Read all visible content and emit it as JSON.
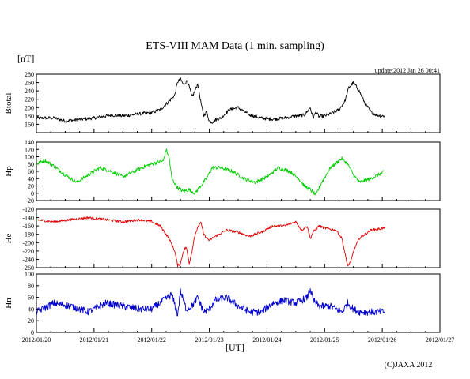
{
  "header": {
    "title": "ETS-VIII MAM Data (1 min. sampling)",
    "unit_label": "[nT]",
    "update_text": "update:2012 Jan 26 00:41"
  },
  "footer": {
    "x_axis_label": "[UT]",
    "copyright": "(C)JAXA 2012"
  },
  "chart_data": {
    "type": "line",
    "x_ticks": [
      "2012/01/20",
      "2012/01/21",
      "2012/01/22",
      "2012/01/23",
      "2012/01/24",
      "2012/01/25",
      "2012/01/26",
      "2012/01/27"
    ],
    "x_range_days": [
      0,
      7
    ],
    "panels": [
      {
        "ylabel": "Btotal",
        "color": "#000000",
        "ylim": [
          140,
          280
        ],
        "yticks": [
          "160",
          "180",
          "200",
          "220",
          "240",
          "260",
          "280"
        ],
        "tick_values": [
          160,
          180,
          200,
          220,
          240,
          260,
          280
        ],
        "series": {
          "x": [
            0.0,
            0.3,
            0.5,
            0.8,
            1.0,
            1.3,
            1.5,
            1.8,
            2.0,
            2.15,
            2.3,
            2.4,
            2.45,
            2.5,
            2.55,
            2.62,
            2.7,
            2.75,
            2.8,
            2.85,
            2.9,
            2.95,
            3.0,
            3.05,
            3.1,
            3.2,
            3.35,
            3.5,
            3.7,
            3.9,
            4.1,
            4.3,
            4.5,
            4.65,
            4.75,
            4.8,
            4.85,
            4.9,
            5.0,
            5.1,
            5.25,
            5.35,
            5.42,
            5.5,
            5.6,
            5.7,
            5.8,
            5.9,
            6.0,
            6.05
          ],
          "values": [
            175,
            175,
            168,
            172,
            175,
            182,
            180,
            185,
            188,
            195,
            215,
            230,
            262,
            268,
            255,
            265,
            225,
            240,
            258,
            215,
            180,
            190,
            168,
            165,
            170,
            175,
            195,
            200,
            182,
            175,
            172,
            175,
            180,
            182,
            200,
            175,
            190,
            178,
            180,
            185,
            195,
            215,
            248,
            260,
            240,
            210,
            190,
            182,
            180,
            180
          ],
          "noise": 4
        }
      },
      {
        "ylabel": "Hp",
        "color": "#00cc00",
        "ylim": [
          -20,
          140
        ],
        "yticks": [
          "-20",
          "0",
          "20",
          "40",
          "60",
          "80",
          "100",
          "120",
          "140"
        ],
        "tick_values": [
          -20,
          0,
          20,
          40,
          60,
          80,
          100,
          120,
          140
        ],
        "series": {
          "x": [
            0.0,
            0.15,
            0.3,
            0.5,
            0.7,
            0.9,
            1.1,
            1.3,
            1.5,
            1.7,
            1.9,
            2.1,
            2.2,
            2.25,
            2.3,
            2.35,
            2.45,
            2.55,
            2.65,
            2.75,
            2.85,
            2.95,
            3.05,
            3.2,
            3.4,
            3.6,
            3.8,
            4.0,
            4.2,
            4.4,
            4.55,
            4.65,
            4.75,
            4.85,
            4.95,
            5.1,
            5.3,
            5.4,
            5.5,
            5.6,
            5.8,
            6.05
          ],
          "values": [
            80,
            90,
            75,
            50,
            30,
            50,
            70,
            60,
            45,
            60,
            75,
            85,
            88,
            120,
            100,
            40,
            15,
            5,
            10,
            0,
            20,
            40,
            70,
            70,
            60,
            40,
            30,
            45,
            70,
            60,
            40,
            20,
            10,
            -5,
            30,
            70,
            95,
            80,
            50,
            30,
            40,
            60
          ],
          "noise": 5
        }
      },
      {
        "ylabel": "He",
        "color": "#dd0000",
        "ylim": [
          -260,
          -120
        ],
        "yticks": [
          "-260",
          "-240",
          "-220",
          "-200",
          "-180",
          "-160",
          "-140",
          "-120"
        ],
        "tick_values": [
          -260,
          -240,
          -220,
          -200,
          -180,
          -160,
          -140,
          -120
        ],
        "series": {
          "x": [
            0.0,
            0.3,
            0.6,
            0.9,
            1.2,
            1.5,
            1.8,
            2.0,
            2.15,
            2.3,
            2.4,
            2.45,
            2.5,
            2.55,
            2.6,
            2.65,
            2.7,
            2.75,
            2.8,
            2.85,
            2.9,
            3.0,
            3.1,
            3.3,
            3.5,
            3.7,
            3.9,
            4.1,
            4.3,
            4.5,
            4.6,
            4.7,
            4.75,
            4.8,
            4.9,
            5.0,
            5.2,
            5.3,
            5.35,
            5.4,
            5.45,
            5.5,
            5.6,
            5.8,
            6.05
          ],
          "values": [
            -145,
            -150,
            -145,
            -140,
            -145,
            -150,
            -145,
            -150,
            -160,
            -190,
            -220,
            -255,
            -250,
            -220,
            -210,
            -250,
            -220,
            -180,
            -165,
            -150,
            -180,
            -195,
            -185,
            -170,
            -175,
            -185,
            -175,
            -160,
            -160,
            -150,
            -170,
            -160,
            -190,
            -175,
            -160,
            -165,
            -170,
            -190,
            -225,
            -255,
            -248,
            -220,
            -190,
            -170,
            -165
          ],
          "noise": 3
        }
      },
      {
        "ylabel": "Hn",
        "color": "#0000cc",
        "ylim": [
          0,
          100
        ],
        "yticks": [
          "0",
          "20",
          "40",
          "60",
          "80",
          "100"
        ],
        "tick_values": [
          0,
          20,
          40,
          60,
          80,
          100
        ],
        "series": {
          "x": [
            0.0,
            0.3,
            0.6,
            0.9,
            1.2,
            1.5,
            1.8,
            2.0,
            2.2,
            2.35,
            2.45,
            2.5,
            2.6,
            2.7,
            2.8,
            2.9,
            3.0,
            3.1,
            3.3,
            3.5,
            3.7,
            3.9,
            4.1,
            4.3,
            4.5,
            4.6,
            4.7,
            4.75,
            4.8,
            4.9,
            5.1,
            5.3,
            5.4,
            5.5,
            5.6,
            5.8,
            6.05
          ],
          "values": [
            35,
            50,
            45,
            35,
            50,
            45,
            40,
            40,
            55,
            65,
            30,
            70,
            40,
            45,
            60,
            35,
            40,
            55,
            60,
            45,
            35,
            35,
            50,
            55,
            50,
            55,
            60,
            75,
            55,
            45,
            45,
            35,
            50,
            40,
            35,
            35,
            35
          ],
          "noise": 6
        }
      }
    ]
  }
}
